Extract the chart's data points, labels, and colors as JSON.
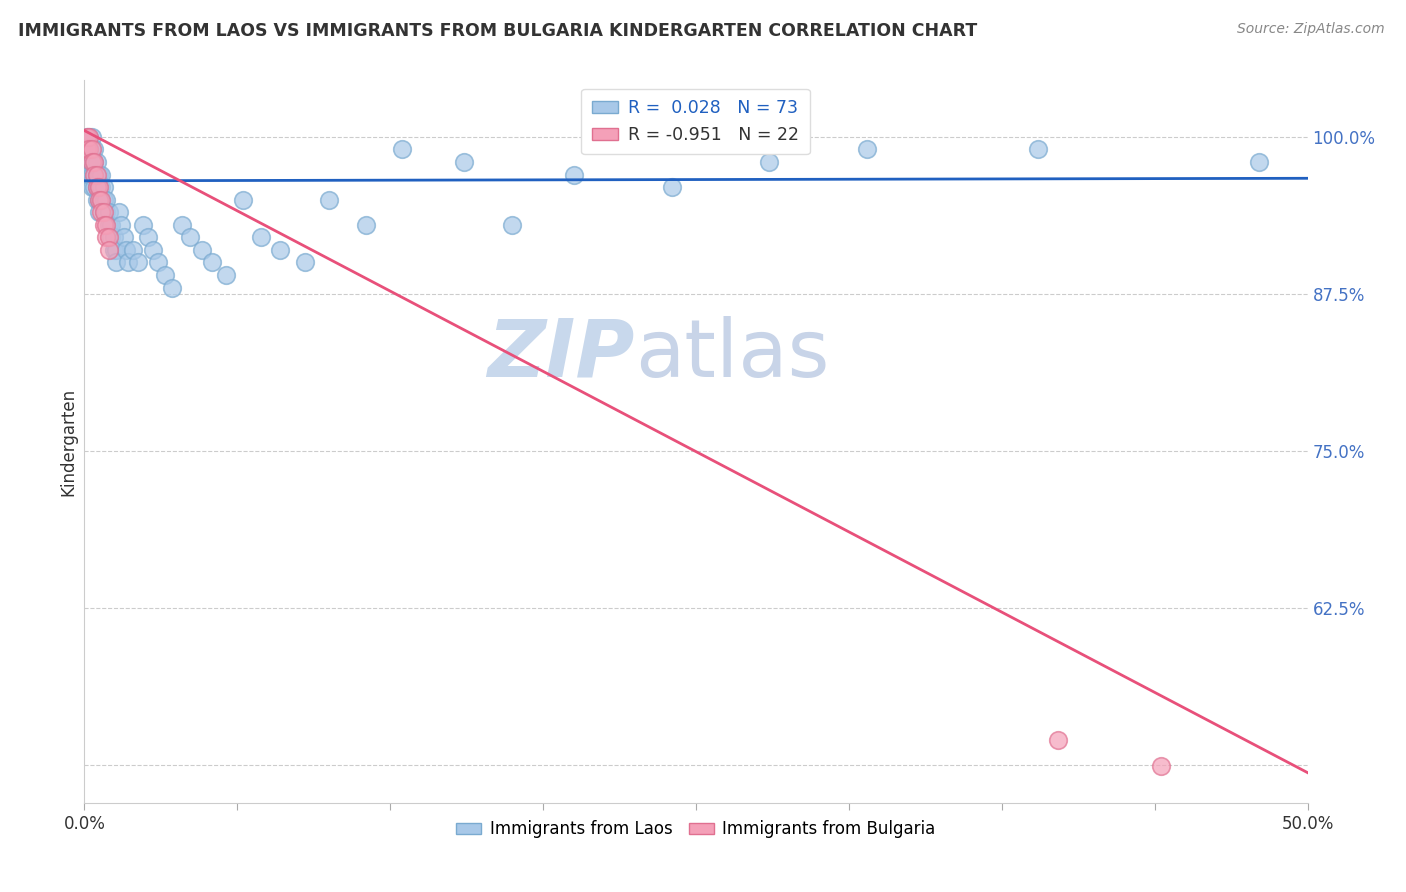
{
  "title": "IMMIGRANTS FROM LAOS VS IMMIGRANTS FROM BULGARIA KINDERGARTEN CORRELATION CHART",
  "source": "Source: ZipAtlas.com",
  "ylabel": "Kindergarten",
  "y_ticks": [
    0.5,
    0.625,
    0.75,
    0.875,
    1.0
  ],
  "y_tick_labels": [
    "",
    "62.5%",
    "75.0%",
    "87.5%",
    "100.0%"
  ],
  "xlim": [
    0.0,
    0.5
  ],
  "ylim": [
    0.47,
    1.045
  ],
  "laos_color": "#A8C8E8",
  "bulgaria_color": "#F4A0B8",
  "laos_edge_color": "#7AAAD0",
  "bulgaria_edge_color": "#E07090",
  "laos_line_color": "#2060C0",
  "bulgaria_line_color": "#E8507A",
  "watermark_zip_color": "#C8D8EC",
  "watermark_atlas_color": "#C8D4E8",
  "laos_x": [
    0.001,
    0.001,
    0.001,
    0.002,
    0.002,
    0.002,
    0.002,
    0.003,
    0.003,
    0.003,
    0.003,
    0.003,
    0.004,
    0.004,
    0.004,
    0.004,
    0.005,
    0.005,
    0.005,
    0.005,
    0.006,
    0.006,
    0.006,
    0.006,
    0.007,
    0.007,
    0.007,
    0.008,
    0.008,
    0.008,
    0.009,
    0.009,
    0.01,
    0.01,
    0.011,
    0.011,
    0.012,
    0.012,
    0.013,
    0.013,
    0.014,
    0.015,
    0.016,
    0.017,
    0.018,
    0.02,
    0.022,
    0.024,
    0.026,
    0.028,
    0.03,
    0.033,
    0.036,
    0.04,
    0.043,
    0.048,
    0.052,
    0.058,
    0.065,
    0.072,
    0.08,
    0.09,
    0.1,
    0.115,
    0.13,
    0.155,
    0.175,
    0.2,
    0.24,
    0.28,
    0.32,
    0.39,
    0.48
  ],
  "laos_y": [
    1.0,
    0.99,
    0.98,
    1.0,
    0.99,
    0.98,
    0.97,
    1.0,
    0.99,
    0.98,
    0.97,
    0.96,
    0.99,
    0.98,
    0.97,
    0.96,
    0.98,
    0.97,
    0.96,
    0.95,
    0.97,
    0.96,
    0.95,
    0.94,
    0.97,
    0.96,
    0.95,
    0.96,
    0.95,
    0.94,
    0.95,
    0.94,
    0.94,
    0.93,
    0.93,
    0.92,
    0.92,
    0.91,
    0.91,
    0.9,
    0.94,
    0.93,
    0.92,
    0.91,
    0.9,
    0.91,
    0.9,
    0.93,
    0.92,
    0.91,
    0.9,
    0.89,
    0.88,
    0.93,
    0.92,
    0.91,
    0.9,
    0.89,
    0.95,
    0.92,
    0.91,
    0.9,
    0.95,
    0.93,
    0.99,
    0.98,
    0.93,
    0.97,
    0.96,
    0.98,
    0.99,
    0.99,
    0.98
  ],
  "bulgaria_x": [
    0.001,
    0.001,
    0.002,
    0.002,
    0.003,
    0.003,
    0.004,
    0.004,
    0.005,
    0.005,
    0.006,
    0.006,
    0.007,
    0.007,
    0.008,
    0.008,
    0.009,
    0.009,
    0.01,
    0.01,
    0.398,
    0.44
  ],
  "bulgaria_y": [
    1.0,
    0.99,
    1.0,
    0.99,
    0.99,
    0.98,
    0.98,
    0.97,
    0.97,
    0.96,
    0.96,
    0.95,
    0.95,
    0.94,
    0.94,
    0.93,
    0.93,
    0.92,
    0.92,
    0.91,
    0.52,
    0.499
  ],
  "laos_trendline": [
    0.0,
    0.5,
    0.965,
    0.967
  ],
  "bulgaria_trendline": [
    0.0,
    0.5,
    1.005,
    0.494
  ]
}
